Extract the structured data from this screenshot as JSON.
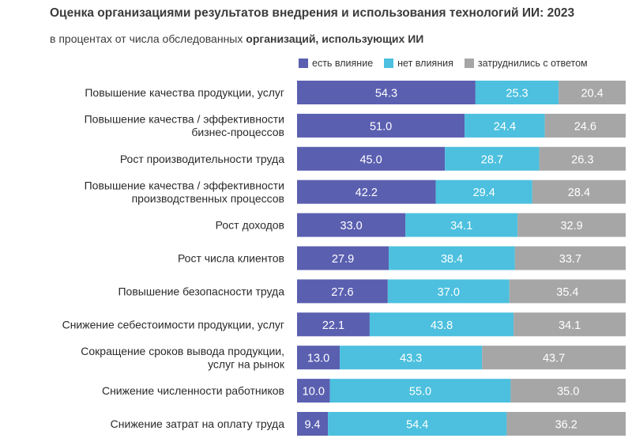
{
  "title": "Оценка организациями результатов внедрения и использования технологий ИИ: 2023",
  "subtitle_prefix": "в процентах от числа обследованных ",
  "subtitle_bold": "организаций, использующих ИИ",
  "colors": {
    "impact": "#5a5fb0",
    "no_impact": "#4cc0de",
    "hard": "#a6a6a6"
  },
  "chart_data": {
    "type": "bar",
    "orientation": "horizontal",
    "stacked": true,
    "xlim": [
      0,
      100
    ],
    "legend_position": "top",
    "categories": [
      [
        "Повышение качества продукции, услуг"
      ],
      [
        "Повышение качества / эффективности",
        "бизнес-процессов"
      ],
      [
        "Рост производительности труда"
      ],
      [
        "Повышение качества / эффективности",
        "производственных процессов"
      ],
      [
        "Рост доходов"
      ],
      [
        "Рост числа клиентов"
      ],
      [
        "Повышение безопасности труда"
      ],
      [
        "Снижение себестоимости продукции, услуг"
      ],
      [
        "Сокращение сроков вывода продукции,",
        "услуг на рынок"
      ],
      [
        "Снижение численности работников"
      ],
      [
        "Снижение затрат на оплату труда"
      ]
    ],
    "series": [
      {
        "name": "есть влияние",
        "color": "#5a5fb0",
        "values": [
          54.3,
          51.0,
          45.0,
          42.2,
          33.0,
          27.9,
          27.6,
          22.1,
          13.0,
          10.0,
          9.4
        ]
      },
      {
        "name": "нет влияния",
        "color": "#4cc0de",
        "values": [
          25.3,
          24.4,
          28.7,
          29.4,
          34.1,
          38.4,
          37.0,
          43.8,
          43.3,
          55.0,
          54.4
        ]
      },
      {
        "name": "затруднились с ответом",
        "color": "#a6a6a6",
        "values": [
          20.4,
          24.6,
          26.3,
          28.4,
          32.9,
          33.7,
          35.4,
          34.1,
          43.7,
          35.0,
          36.2
        ]
      }
    ]
  }
}
